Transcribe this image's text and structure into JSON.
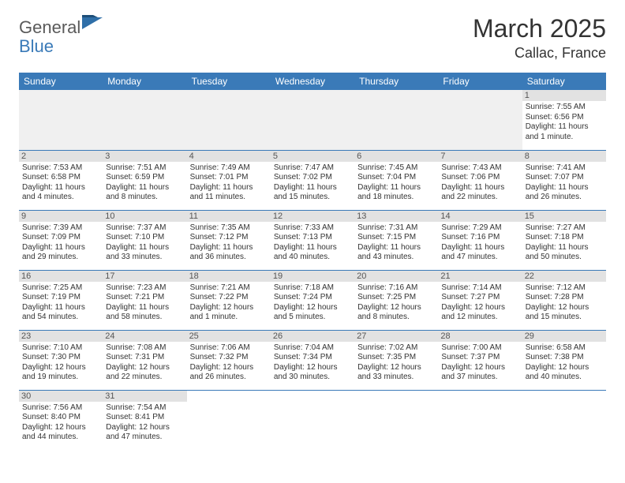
{
  "logo": {
    "text1": "General",
    "text2": "Blue",
    "shape_color": "#2f6fa8"
  },
  "header": {
    "month": "March 2025",
    "location": "Callac, France"
  },
  "colors": {
    "header_bg": "#3a7ab8",
    "header_text": "#ffffff",
    "daynum_bg": "#e2e2e2",
    "cell_border": "#3a7ab8",
    "body_text": "#333333"
  },
  "day_headers": [
    "Sunday",
    "Monday",
    "Tuesday",
    "Wednesday",
    "Thursday",
    "Friday",
    "Saturday"
  ],
  "weeks": [
    [
      null,
      null,
      null,
      null,
      null,
      null,
      {
        "n": "1",
        "sunrise": "7:55 AM",
        "sunset": "6:56 PM",
        "daylight": "11 hours and 1 minute."
      }
    ],
    [
      {
        "n": "2",
        "sunrise": "7:53 AM",
        "sunset": "6:58 PM",
        "daylight": "11 hours and 4 minutes."
      },
      {
        "n": "3",
        "sunrise": "7:51 AM",
        "sunset": "6:59 PM",
        "daylight": "11 hours and 8 minutes."
      },
      {
        "n": "4",
        "sunrise": "7:49 AM",
        "sunset": "7:01 PM",
        "daylight": "11 hours and 11 minutes."
      },
      {
        "n": "5",
        "sunrise": "7:47 AM",
        "sunset": "7:02 PM",
        "daylight": "11 hours and 15 minutes."
      },
      {
        "n": "6",
        "sunrise": "7:45 AM",
        "sunset": "7:04 PM",
        "daylight": "11 hours and 18 minutes."
      },
      {
        "n": "7",
        "sunrise": "7:43 AM",
        "sunset": "7:06 PM",
        "daylight": "11 hours and 22 minutes."
      },
      {
        "n": "8",
        "sunrise": "7:41 AM",
        "sunset": "7:07 PM",
        "daylight": "11 hours and 26 minutes."
      }
    ],
    [
      {
        "n": "9",
        "sunrise": "7:39 AM",
        "sunset": "7:09 PM",
        "daylight": "11 hours and 29 minutes."
      },
      {
        "n": "10",
        "sunrise": "7:37 AM",
        "sunset": "7:10 PM",
        "daylight": "11 hours and 33 minutes."
      },
      {
        "n": "11",
        "sunrise": "7:35 AM",
        "sunset": "7:12 PM",
        "daylight": "11 hours and 36 minutes."
      },
      {
        "n": "12",
        "sunrise": "7:33 AM",
        "sunset": "7:13 PM",
        "daylight": "11 hours and 40 minutes."
      },
      {
        "n": "13",
        "sunrise": "7:31 AM",
        "sunset": "7:15 PM",
        "daylight": "11 hours and 43 minutes."
      },
      {
        "n": "14",
        "sunrise": "7:29 AM",
        "sunset": "7:16 PM",
        "daylight": "11 hours and 47 minutes."
      },
      {
        "n": "15",
        "sunrise": "7:27 AM",
        "sunset": "7:18 PM",
        "daylight": "11 hours and 50 minutes."
      }
    ],
    [
      {
        "n": "16",
        "sunrise": "7:25 AM",
        "sunset": "7:19 PM",
        "daylight": "11 hours and 54 minutes."
      },
      {
        "n": "17",
        "sunrise": "7:23 AM",
        "sunset": "7:21 PM",
        "daylight": "11 hours and 58 minutes."
      },
      {
        "n": "18",
        "sunrise": "7:21 AM",
        "sunset": "7:22 PM",
        "daylight": "12 hours and 1 minute."
      },
      {
        "n": "19",
        "sunrise": "7:18 AM",
        "sunset": "7:24 PM",
        "daylight": "12 hours and 5 minutes."
      },
      {
        "n": "20",
        "sunrise": "7:16 AM",
        "sunset": "7:25 PM",
        "daylight": "12 hours and 8 minutes."
      },
      {
        "n": "21",
        "sunrise": "7:14 AM",
        "sunset": "7:27 PM",
        "daylight": "12 hours and 12 minutes."
      },
      {
        "n": "22",
        "sunrise": "7:12 AM",
        "sunset": "7:28 PM",
        "daylight": "12 hours and 15 minutes."
      }
    ],
    [
      {
        "n": "23",
        "sunrise": "7:10 AM",
        "sunset": "7:30 PM",
        "daylight": "12 hours and 19 minutes."
      },
      {
        "n": "24",
        "sunrise": "7:08 AM",
        "sunset": "7:31 PM",
        "daylight": "12 hours and 22 minutes."
      },
      {
        "n": "25",
        "sunrise": "7:06 AM",
        "sunset": "7:32 PM",
        "daylight": "12 hours and 26 minutes."
      },
      {
        "n": "26",
        "sunrise": "7:04 AM",
        "sunset": "7:34 PM",
        "daylight": "12 hours and 30 minutes."
      },
      {
        "n": "27",
        "sunrise": "7:02 AM",
        "sunset": "7:35 PM",
        "daylight": "12 hours and 33 minutes."
      },
      {
        "n": "28",
        "sunrise": "7:00 AM",
        "sunset": "7:37 PM",
        "daylight": "12 hours and 37 minutes."
      },
      {
        "n": "29",
        "sunrise": "6:58 AM",
        "sunset": "7:38 PM",
        "daylight": "12 hours and 40 minutes."
      }
    ],
    [
      {
        "n": "30",
        "sunrise": "7:56 AM",
        "sunset": "8:40 PM",
        "daylight": "12 hours and 44 minutes."
      },
      {
        "n": "31",
        "sunrise": "7:54 AM",
        "sunset": "8:41 PM",
        "daylight": "12 hours and 47 minutes."
      },
      null,
      null,
      null,
      null,
      null
    ]
  ],
  "labels": {
    "sunrise": "Sunrise: ",
    "sunset": "Sunset: ",
    "daylight": "Daylight: "
  }
}
